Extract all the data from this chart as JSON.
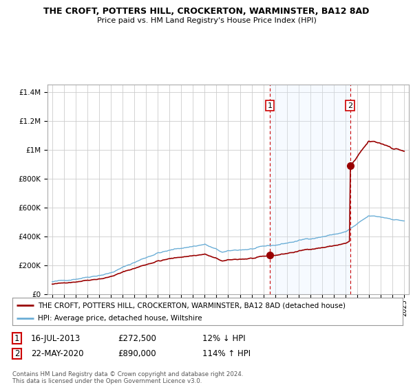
{
  "title": "THE CROFT, POTTERS HILL, CROCKERTON, WARMINSTER, BA12 8AD",
  "subtitle": "Price paid vs. HM Land Registry's House Price Index (HPI)",
  "legend_line1": "THE CROFT, POTTERS HILL, CROCKERTON, WARMINSTER, BA12 8AD (detached house)",
  "legend_line2": "HPI: Average price, detached house, Wiltshire",
  "sale1_date": "16-JUL-2013",
  "sale1_price": "£272,500",
  "sale1_hpi": "12% ↓ HPI",
  "sale2_date": "22-MAY-2020",
  "sale2_price": "£890,000",
  "sale2_hpi": "114% ↑ HPI",
  "footnote": "Contains HM Land Registry data © Crown copyright and database right 2024.\nThis data is licensed under the Open Government Licence v3.0.",
  "hpi_color": "#6baed6",
  "price_color": "#990000",
  "sale_dot_color": "#990000",
  "vline_color": "#cc0000",
  "shade_color": "#ddeeff",
  "background_color": "#ffffff",
  "grid_color": "#cccccc",
  "ylim": [
    0,
    1450000
  ],
  "yticks": [
    0,
    200000,
    400000,
    600000,
    800000,
    1000000,
    1200000,
    1400000
  ],
  "ytick_labels": [
    "£0",
    "£200K",
    "£400K",
    "£600K",
    "£800K",
    "£1M",
    "£1.2M",
    "£1.4M"
  ],
  "sale1_x": 2013.54,
  "sale1_y": 272500,
  "sale2_x": 2020.39,
  "sale2_y": 890000,
  "xmin": 1994.6,
  "xmax": 2025.4
}
